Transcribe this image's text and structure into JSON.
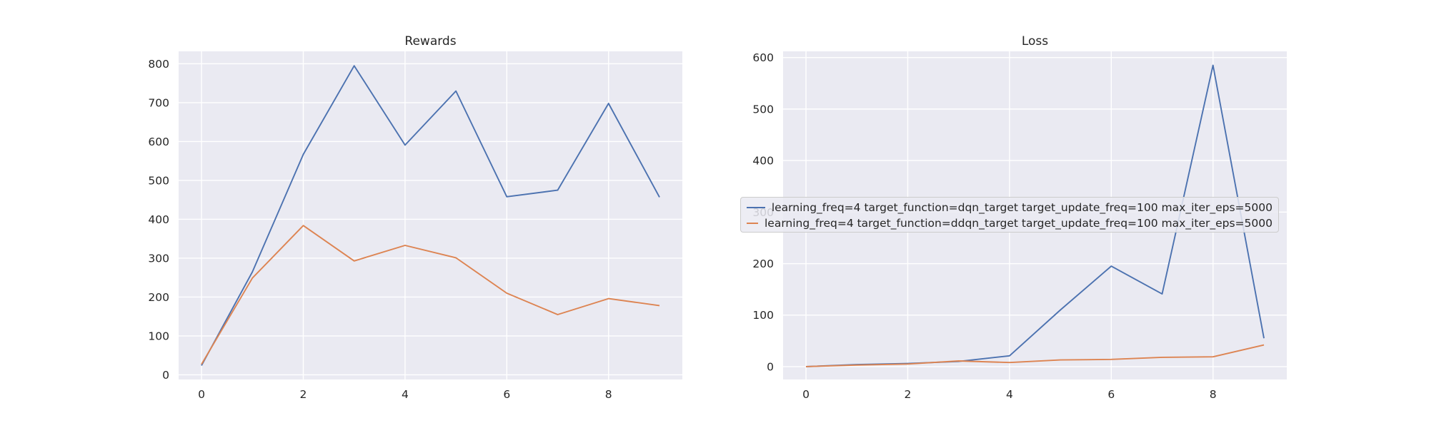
{
  "chart_data": [
    {
      "type": "line",
      "title": "Rewards",
      "xlabel": "",
      "ylabel": "",
      "x": [
        0,
        1,
        2,
        3,
        4,
        5,
        6,
        7,
        8,
        9
      ],
      "xlim": [
        -0.45,
        9.45
      ],
      "ylim": [
        -12,
        832
      ],
      "xticks": [
        0,
        2,
        4,
        6,
        8
      ],
      "yticks": [
        0,
        100,
        200,
        300,
        400,
        500,
        600,
        700,
        800
      ],
      "grid": true,
      "series": [
        {
          "name": "learning_freq=4 target_function=dqn_target target_update_freq=100 max_iter_eps=5000",
          "color": "#4c72b0",
          "values": [
            24,
            265,
            567,
            795,
            591,
            730,
            458,
            475,
            698,
            457
          ]
        },
        {
          "name": "learning_freq=4 target_function=ddqn_target target_update_freq=100 max_iter_eps=5000",
          "color": "#dd8452",
          "values": [
            27,
            249,
            384,
            293,
            333,
            301,
            210,
            155,
            196,
            178
          ]
        }
      ]
    },
    {
      "type": "line",
      "title": "Loss",
      "xlabel": "",
      "ylabel": "",
      "x": [
        0,
        1,
        2,
        3,
        4,
        5,
        6,
        7,
        8,
        9
      ],
      "xlim": [
        -0.45,
        9.45
      ],
      "ylim": [
        -25,
        612
      ],
      "xticks": [
        0,
        2,
        4,
        6,
        8
      ],
      "yticks": [
        0,
        100,
        200,
        300,
        400,
        500,
        600
      ],
      "grid": true,
      "legend_position": "center-right",
      "series": [
        {
          "name": "learning_freq=4 target_function=dqn_target target_update_freq=100 max_iter_eps=5000",
          "color": "#4c72b0",
          "values": [
            0,
            4,
            6,
            10,
            21,
            110,
            195,
            141,
            585,
            55
          ]
        },
        {
          "name": "learning_freq=4 target_function=ddqn_target target_update_freq=100 max_iter_eps=5000",
          "color": "#dd8452",
          "values": [
            0,
            3,
            5,
            11,
            8,
            13,
            14,
            18,
            19,
            42
          ]
        }
      ]
    }
  ]
}
